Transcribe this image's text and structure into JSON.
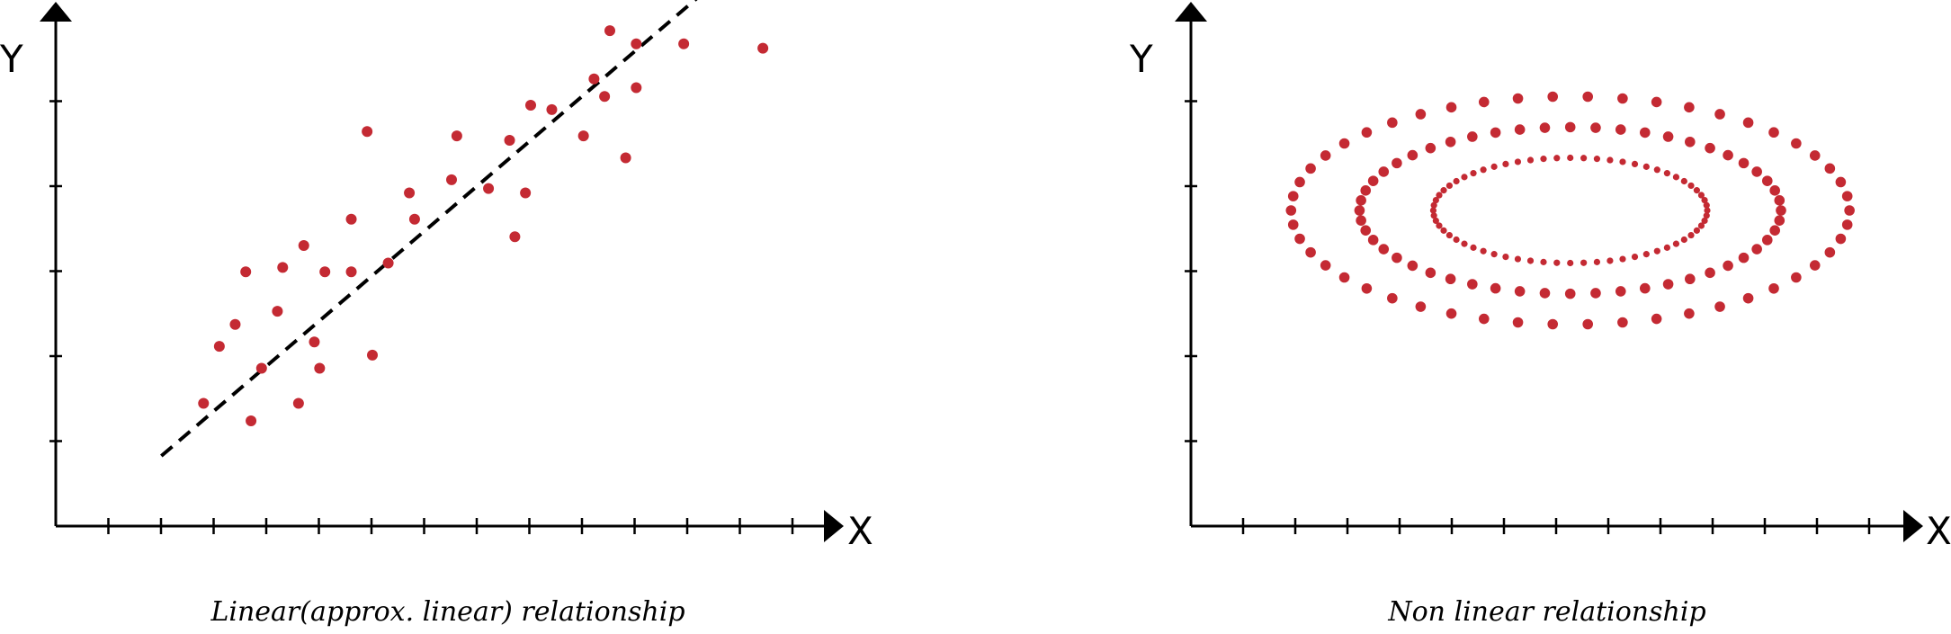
{
  "chart_data": [
    {
      "type": "scatter",
      "caption": "Linear(approx. linear) relationship",
      "xlabel": "X",
      "ylabel": "Y",
      "xlim": [
        0,
        15
      ],
      "ylim": [
        0,
        6
      ],
      "x_ticks": 14,
      "y_ticks": 5,
      "point_color": "#c42a33",
      "trend_line": {
        "style": "dashed",
        "color": "#000000",
        "from": [
          2,
          0.8
        ],
        "to": [
          12.5,
          6.2
        ]
      },
      "points": [
        [
          2.8,
          1.4
        ],
        [
          3.1,
          2.05
        ],
        [
          3.4,
          2.3
        ],
        [
          3.7,
          1.2
        ],
        [
          3.9,
          1.8
        ],
        [
          3.6,
          2.9
        ],
        [
          4.2,
          2.45
        ],
        [
          4.3,
          2.95
        ],
        [
          4.6,
          1.4
        ],
        [
          4.7,
          3.2
        ],
        [
          4.9,
          2.1
        ],
        [
          5.0,
          1.8
        ],
        [
          5.1,
          2.9
        ],
        [
          5.6,
          2.9
        ],
        [
          5.6,
          3.5
        ],
        [
          5.9,
          4.5
        ],
        [
          6.0,
          1.95
        ],
        [
          6.3,
          3.0
        ],
        [
          6.7,
          3.8
        ],
        [
          6.8,
          3.5
        ],
        [
          7.5,
          3.95
        ],
        [
          7.6,
          4.45
        ],
        [
          8.2,
          3.85
        ],
        [
          8.6,
          4.4
        ],
        [
          8.7,
          3.3
        ],
        [
          8.9,
          3.8
        ],
        [
          9.0,
          4.8
        ],
        [
          9.4,
          4.75
        ],
        [
          10.0,
          4.45
        ],
        [
          10.2,
          5.1
        ],
        [
          10.4,
          4.9
        ],
        [
          10.5,
          5.65
        ],
        [
          10.8,
          4.2
        ],
        [
          11.0,
          5.0
        ],
        [
          11.0,
          5.5
        ],
        [
          11.9,
          5.5
        ],
        [
          13.4,
          5.45
        ]
      ]
    },
    {
      "type": "scatter",
      "caption": "Non linear relationship",
      "xlabel": "X",
      "ylabel": "Y",
      "xlim": [
        0,
        14
      ],
      "ylim": [
        0,
        6
      ],
      "x_ticks": 13,
      "y_ticks": 5,
      "point_color": "#c42a33",
      "pattern": "three concentric elliptical rings of points",
      "rings": [
        {
          "center": [
            7.2,
            3.6
          ],
          "rx": 5.3,
          "ry": 1.3,
          "points": 50
        },
        {
          "center": [
            7.2,
            3.6
          ],
          "rx": 4.0,
          "ry": 0.95,
          "points": 52
        },
        {
          "center": [
            7.2,
            3.6
          ],
          "rx": 2.6,
          "ry": 0.6,
          "points": 64
        }
      ]
    }
  ]
}
